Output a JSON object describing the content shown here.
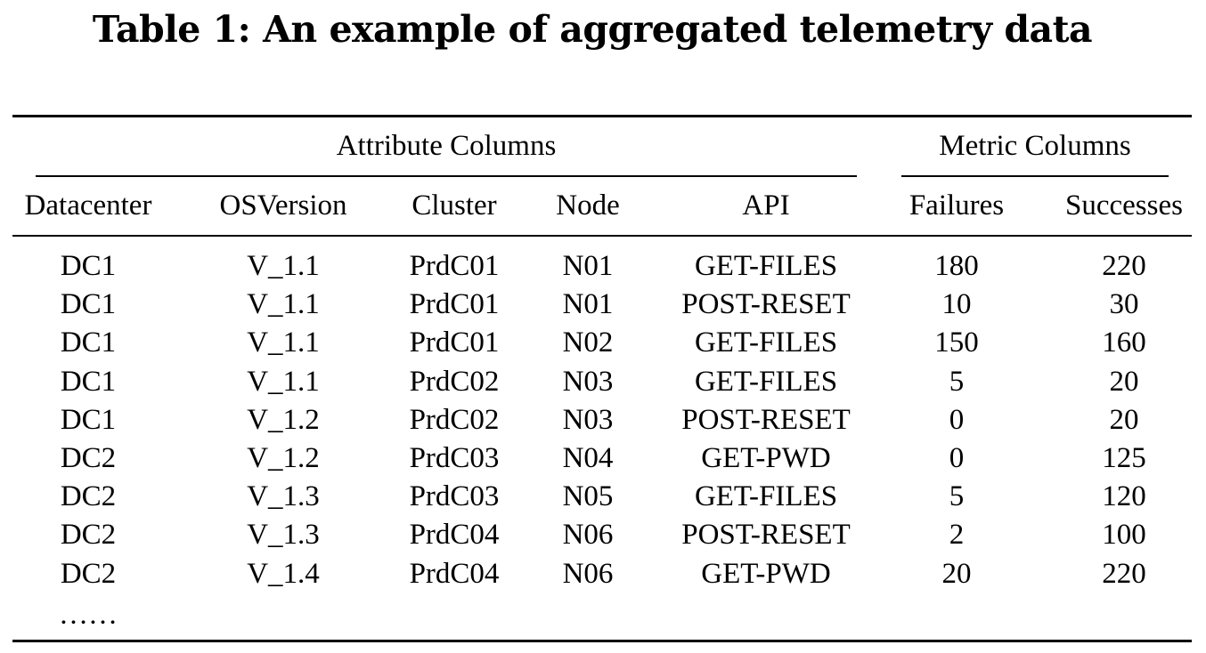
{
  "caption": "Table 1: An example of aggregated telemetry data",
  "group_headers": {
    "attributes": "Attribute Columns",
    "metrics": "Metric Columns"
  },
  "columns": [
    "Datacenter",
    "OSVersion",
    "Cluster",
    "Node",
    "API",
    "Failures",
    "Successes"
  ],
  "rows": [
    [
      "DC1",
      "V_1.1",
      "PrdC01",
      "N01",
      "GET-FILES",
      "180",
      "220"
    ],
    [
      "DC1",
      "V_1.1",
      "PrdC01",
      "N01",
      "POST-RESET",
      "10",
      "30"
    ],
    [
      "DC1",
      "V_1.1",
      "PrdC01",
      "N02",
      "GET-FILES",
      "150",
      "160"
    ],
    [
      "DC1",
      "V_1.1",
      "PrdC02",
      "N03",
      "GET-FILES",
      "5",
      "20"
    ],
    [
      "DC1",
      "V_1.2",
      "PrdC02",
      "N03",
      "POST-RESET",
      "0",
      "20"
    ],
    [
      "DC2",
      "V_1.2",
      "PrdC03",
      "N04",
      "GET-PWD",
      "0",
      "125"
    ],
    [
      "DC2",
      "V_1.3",
      "PrdC03",
      "N05",
      "GET-FILES",
      "5",
      "120"
    ],
    [
      "DC2",
      "V_1.3",
      "PrdC04",
      "N06",
      "POST-RESET",
      "2",
      "100"
    ],
    [
      "DC2",
      "V_1.4",
      "PrdC04",
      "N06",
      "GET-PWD",
      "20",
      "220"
    ]
  ],
  "continuation": "……"
}
